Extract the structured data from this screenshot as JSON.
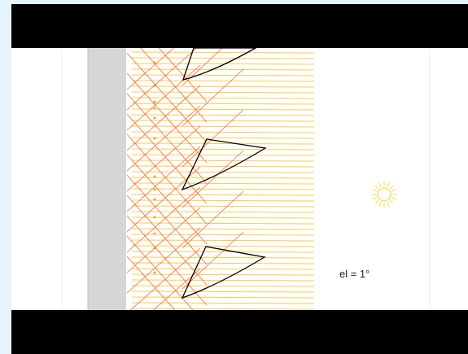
{
  "simulation": {
    "elevation_label": "el = 1°",
    "elevation_deg": 1,
    "sun_icon": "sun-icon",
    "colors": {
      "letterbox": "#000000",
      "background": "#ffffff",
      "wall": "#d6d6d6",
      "incoming_ray": "#ffc02a",
      "reflected_ray": "#f06a32",
      "reflector_outline": "#000000",
      "sun": "#ffd84a",
      "page": "#e6f4fb"
    }
  }
}
